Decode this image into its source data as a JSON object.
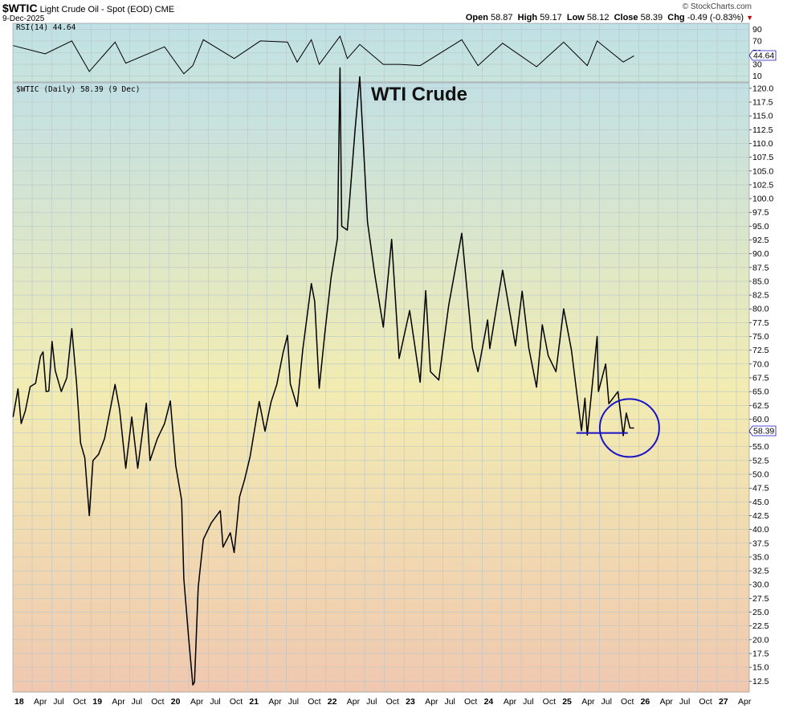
{
  "header": {
    "symbol": "$WTIC",
    "description": "Light Crude Oil - Spot (EOD)",
    "exchange": "CME",
    "date": "9-Dec-2025",
    "brand": "© StockCharts.com",
    "open_label": "Open",
    "open": "58.87",
    "high_label": "High",
    "high": "59.17",
    "low_label": "Low",
    "low": "58.12",
    "close_label": "Close",
    "close": "58.39",
    "chg_label": "Chg",
    "chg": "-0.49 (-0.83%)",
    "chg_arrow": "▼"
  },
  "rsi_panel": {
    "legend": "RSI(14) 44.64",
    "value_badge": "44.64",
    "ticks": [
      "90",
      "70",
      "50",
      "30",
      "10"
    ],
    "tick_values": [
      90,
      70,
      50,
      30,
      10
    ]
  },
  "price_panel": {
    "legend": "$WTIC (Daily) 58.39 (9 Dec)",
    "annotation": "WTI Crude",
    "value_badge": "58.39"
  },
  "colors": {
    "line": "#000000",
    "circle": "#1a14c8",
    "support": "#1a14c8",
    "grid": "#b8c4c8",
    "bg_top": "#c2e0e4",
    "bg_mid": "#f2ecb2",
    "bg_bottom": "#f0c8b0"
  },
  "chart_data": {
    "type": "line",
    "title": "WTI Crude",
    "xlabel": "",
    "ylabel": "",
    "ylim": [
      10.5,
      121
    ],
    "yticks": [
      12.5,
      15,
      17.5,
      20,
      22.5,
      25,
      27.5,
      30,
      32.5,
      35,
      37.5,
      40,
      42.5,
      45,
      47.5,
      50,
      52.5,
      55,
      57.5,
      60,
      62.5,
      65,
      67.5,
      70,
      72.5,
      75,
      77.5,
      80,
      82.5,
      85,
      87.5,
      90,
      92.5,
      95,
      97.5,
      100,
      102.5,
      105,
      107.5,
      110,
      112.5,
      115,
      117.5,
      120
    ],
    "ytick_labels": [
      "12.5",
      "15.0",
      "17.5",
      "20.0",
      "22.5",
      "25.0",
      "27.5",
      "30.0",
      "32.5",
      "35.0",
      "37.5",
      "40.0",
      "42.5",
      "45.0",
      "47.5",
      "50.0",
      "52.5",
      "55.0",
      "57.5",
      "60.0",
      "62.5",
      "65.0",
      "67.5",
      "70.0",
      "72.5",
      "75.0",
      "77.5",
      "80.0",
      "82.5",
      "85.0",
      "87.5",
      "90.0",
      "92.5",
      "95.0",
      "97.5",
      "100.0",
      "102.5",
      "105.0",
      "107.5",
      "110.0",
      "112.5",
      "115.0",
      "117.5",
      "120.0"
    ],
    "xlim": [
      "2018-01-01",
      "2027-05-31"
    ],
    "xticks": [
      {
        "date": "2018-01-01",
        "label": "18",
        "year": true
      },
      {
        "date": "2018-04-01",
        "label": "Apr"
      },
      {
        "date": "2018-07-01",
        "label": "Jul"
      },
      {
        "date": "2018-10-01",
        "label": "Oct"
      },
      {
        "date": "2019-01-01",
        "label": "19",
        "year": true
      },
      {
        "date": "2019-04-01",
        "label": "Apr"
      },
      {
        "date": "2019-07-01",
        "label": "Jul"
      },
      {
        "date": "2019-10-01",
        "label": "Oct"
      },
      {
        "date": "2020-01-01",
        "label": "20",
        "year": true
      },
      {
        "date": "2020-04-01",
        "label": "Apr"
      },
      {
        "date": "2020-07-01",
        "label": "Jul"
      },
      {
        "date": "2020-10-01",
        "label": "Oct"
      },
      {
        "date": "2021-01-01",
        "label": "21",
        "year": true
      },
      {
        "date": "2021-04-01",
        "label": "Apr"
      },
      {
        "date": "2021-07-01",
        "label": "Jul"
      },
      {
        "date": "2021-10-01",
        "label": "Oct"
      },
      {
        "date": "2022-01-01",
        "label": "22",
        "year": true
      },
      {
        "date": "2022-04-01",
        "label": "Apr"
      },
      {
        "date": "2022-07-01",
        "label": "Jul"
      },
      {
        "date": "2022-10-01",
        "label": "Oct"
      },
      {
        "date": "2023-01-01",
        "label": "23",
        "year": true
      },
      {
        "date": "2023-04-01",
        "label": "Apr"
      },
      {
        "date": "2023-07-01",
        "label": "Jul"
      },
      {
        "date": "2023-10-01",
        "label": "Oct"
      },
      {
        "date": "2024-01-01",
        "label": "24",
        "year": true
      },
      {
        "date": "2024-04-01",
        "label": "Apr"
      },
      {
        "date": "2024-07-01",
        "label": "Jul"
      },
      {
        "date": "2024-10-01",
        "label": "Oct"
      },
      {
        "date": "2025-01-01",
        "label": "25",
        "year": true
      },
      {
        "date": "2025-04-01",
        "label": "Apr"
      },
      {
        "date": "2025-07-01",
        "label": "Jul"
      },
      {
        "date": "2025-10-01",
        "label": "Oct"
      },
      {
        "date": "2026-01-01",
        "label": "26",
        "year": true
      },
      {
        "date": "2026-04-01",
        "label": "Apr"
      },
      {
        "date": "2026-07-01",
        "label": "Jul"
      },
      {
        "date": "2026-10-01",
        "label": "Oct"
      },
      {
        "date": "2027-01-01",
        "label": "27",
        "year": true
      },
      {
        "date": "2027-04-01",
        "label": "Apr"
      }
    ],
    "series": [
      {
        "name": "$WTIC (Daily)",
        "points": [
          [
            "2018-01-02",
            60.4
          ],
          [
            "2018-01-25",
            65.5
          ],
          [
            "2018-02-09",
            59.2
          ],
          [
            "2018-03-01",
            61.6
          ],
          [
            "2018-03-23",
            65.9
          ],
          [
            "2018-04-17",
            66.5
          ],
          [
            "2018-05-10",
            71.4
          ],
          [
            "2018-05-22",
            72.2
          ],
          [
            "2018-06-05",
            65.0
          ],
          [
            "2018-06-18",
            65.1
          ],
          [
            "2018-07-03",
            74.1
          ],
          [
            "2018-07-18",
            68.8
          ],
          [
            "2018-08-15",
            65.0
          ],
          [
            "2018-09-10",
            67.5
          ],
          [
            "2018-10-03",
            76.4
          ],
          [
            "2018-10-25",
            66.8
          ],
          [
            "2018-11-13",
            55.7
          ],
          [
            "2018-12-03",
            53.0
          ],
          [
            "2018-12-24",
            42.5
          ],
          [
            "2019-01-10",
            52.5
          ],
          [
            "2019-02-05",
            53.6
          ],
          [
            "2019-03-05",
            56.5
          ],
          [
            "2019-04-23",
            66.3
          ],
          [
            "2019-05-14",
            61.8
          ],
          [
            "2019-06-12",
            51.1
          ],
          [
            "2019-07-10",
            60.4
          ],
          [
            "2019-08-07",
            51.1
          ],
          [
            "2019-09-16",
            62.9
          ],
          [
            "2019-10-03",
            52.5
          ],
          [
            "2019-11-06",
            56.4
          ],
          [
            "2019-12-10",
            59.2
          ],
          [
            "2020-01-06",
            63.3
          ],
          [
            "2020-01-31",
            51.6
          ],
          [
            "2020-02-28",
            45.3
          ],
          [
            "2020-03-09",
            31.1
          ],
          [
            "2020-03-31",
            20.5
          ],
          [
            "2020-04-20",
            11.8
          ],
          [
            "2020-04-28",
            12.3
          ],
          [
            "2020-05-15",
            29.5
          ],
          [
            "2020-06-08",
            38.2
          ],
          [
            "2020-07-15",
            41.2
          ],
          [
            "2020-08-26",
            43.4
          ],
          [
            "2020-09-08",
            36.8
          ],
          [
            "2020-10-12",
            39.4
          ],
          [
            "2020-10-30",
            35.8
          ],
          [
            "2020-11-24",
            45.9
          ],
          [
            "2020-12-18",
            49.1
          ],
          [
            "2021-01-12",
            53.2
          ],
          [
            "2021-02-24",
            63.2
          ],
          [
            "2021-03-23",
            57.8
          ],
          [
            "2021-04-20",
            63.1
          ],
          [
            "2021-05-17",
            66.3
          ],
          [
            "2021-06-15",
            72.0
          ],
          [
            "2021-07-06",
            75.2
          ],
          [
            "2021-07-19",
            66.4
          ],
          [
            "2021-08-20",
            62.3
          ],
          [
            "2021-09-15",
            72.6
          ],
          [
            "2021-10-25",
            84.6
          ],
          [
            "2021-11-10",
            81.3
          ],
          [
            "2021-12-01",
            65.6
          ],
          [
            "2021-12-27",
            75.6
          ],
          [
            "2022-01-25",
            85.6
          ],
          [
            "2022-02-24",
            92.8
          ],
          [
            "2022-03-08",
            123.7
          ],
          [
            "2022-03-16",
            95.0
          ],
          [
            "2022-04-11",
            94.3
          ],
          [
            "2022-05-17",
            112.4
          ],
          [
            "2022-06-08",
            122.1
          ],
          [
            "2022-07-14",
            95.8
          ],
          [
            "2022-08-16",
            86.5
          ],
          [
            "2022-09-26",
            76.7
          ],
          [
            "2022-11-04",
            92.6
          ],
          [
            "2022-12-09",
            71.0
          ],
          [
            "2023-01-27",
            79.7
          ],
          [
            "2023-03-17",
            66.7
          ],
          [
            "2023-04-12",
            83.3
          ],
          [
            "2023-05-04",
            68.6
          ],
          [
            "2023-06-12",
            67.1
          ],
          [
            "2023-07-28",
            80.6
          ],
          [
            "2023-09-27",
            93.7
          ],
          [
            "2023-11-16",
            72.9
          ],
          [
            "2023-12-12",
            68.6
          ],
          [
            "2024-01-26",
            78.0
          ],
          [
            "2024-02-05",
            72.8
          ],
          [
            "2024-04-05",
            87.0
          ],
          [
            "2024-06-04",
            73.3
          ],
          [
            "2024-07-05",
            83.2
          ],
          [
            "2024-08-05",
            72.9
          ],
          [
            "2024-09-10",
            65.8
          ],
          [
            "2024-10-07",
            77.1
          ],
          [
            "2024-11-04",
            71.5
          ],
          [
            "2024-12-10",
            68.6
          ],
          [
            "2025-01-15",
            80.0
          ],
          [
            "2025-02-20",
            72.5
          ],
          [
            "2025-04-08",
            57.9
          ],
          [
            "2025-04-24",
            63.8
          ],
          [
            "2025-05-05",
            57.1
          ],
          [
            "2025-06-20",
            75.0
          ],
          [
            "2025-06-26",
            65.0
          ],
          [
            "2025-07-30",
            70.0
          ],
          [
            "2025-08-14",
            62.8
          ],
          [
            "2025-09-25",
            65.0
          ],
          [
            "2025-10-20",
            57.0
          ],
          [
            "2025-11-03",
            61.1
          ],
          [
            "2025-11-20",
            58.4
          ],
          [
            "2025-12-09",
            58.39
          ]
        ]
      },
      {
        "name": "RSI(14)",
        "points": [
          [
            "2018-01-02",
            62
          ],
          [
            "2018-06-01",
            48
          ],
          [
            "2018-10-03",
            70
          ],
          [
            "2018-12-24",
            18
          ],
          [
            "2019-04-23",
            68
          ],
          [
            "2019-06-12",
            32
          ],
          [
            "2019-12-10",
            60
          ],
          [
            "2020-03-09",
            14
          ],
          [
            "2020-04-20",
            28
          ],
          [
            "2020-06-08",
            72
          ],
          [
            "2020-10-30",
            40
          ],
          [
            "2021-03-01",
            70
          ],
          [
            "2021-07-06",
            68
          ],
          [
            "2021-08-20",
            34
          ],
          [
            "2021-10-25",
            72
          ],
          [
            "2021-12-01",
            30
          ],
          [
            "2022-03-08",
            78
          ],
          [
            "2022-04-11",
            40
          ],
          [
            "2022-06-08",
            64
          ],
          [
            "2022-09-26",
            30
          ],
          [
            "2022-12-09",
            30
          ],
          [
            "2023-03-17",
            28
          ],
          [
            "2023-09-27",
            72
          ],
          [
            "2023-12-12",
            28
          ],
          [
            "2024-04-05",
            66
          ],
          [
            "2024-09-10",
            26
          ],
          [
            "2025-01-15",
            68
          ],
          [
            "2025-05-05",
            28
          ],
          [
            "2025-06-20",
            70
          ],
          [
            "2025-10-20",
            34
          ],
          [
            "2025-12-09",
            44.64
          ]
        ]
      }
    ],
    "annotations": [
      {
        "type": "horizontal-line",
        "y": 57.5,
        "from": "2025-03-15",
        "to": "2025-11-10"
      },
      {
        "type": "circle",
        "center_date": "2025-11-18",
        "center_y": 58.4
      }
    ]
  }
}
